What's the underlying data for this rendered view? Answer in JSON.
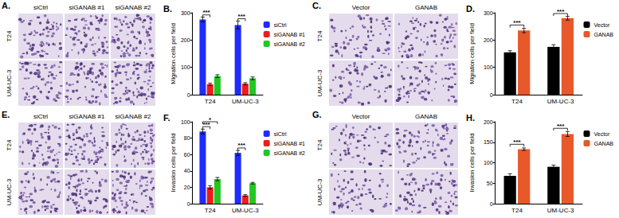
{
  "image_panels": [
    {
      "label": "A.",
      "columns": [
        "siCtrl",
        "siGANAB #1",
        "siGANAB #2"
      ],
      "rows": [
        "T24",
        "UM-UC-3"
      ]
    },
    {
      "label": "C.",
      "columns": [
        "Vector",
        "GANAB"
      ],
      "rows": [
        "T24",
        "UM-UC-3"
      ]
    },
    {
      "label": "E.",
      "columns": [
        "siCtrl",
        "siGANAB #1",
        "siGANAB #2"
      ],
      "rows": [
        "T24",
        "UM-UC-3"
      ]
    },
    {
      "label": "G.",
      "columns": [
        "Vector",
        "GANAB"
      ],
      "rows": [
        "T24",
        "UM-UC-3"
      ]
    }
  ],
  "chart_data": [
    {
      "type": "bar",
      "title": "B.",
      "ylabel": "Migration cells per field",
      "categories": [
        "T24",
        "UM-UC-3"
      ],
      "series": [
        {
          "name": "siCtrl",
          "color": "#1f2bff",
          "values": [
            275,
            255
          ],
          "errors": [
            9,
            14
          ]
        },
        {
          "name": "siGANAB #1",
          "color": "#ee1c1c",
          "values": [
            38,
            40
          ],
          "errors": [
            4,
            4
          ]
        },
        {
          "name": "siGANAB #2",
          "color": "#22c722",
          "values": [
            68,
            60
          ],
          "errors": [
            5,
            5
          ]
        }
      ],
      "ylim": [
        0,
        300
      ],
      "yticks": [
        0,
        100,
        200,
        300
      ],
      "grid": false,
      "legend": "right",
      "annotations": [
        {
          "text": "***",
          "category": "T24",
          "between": [
            "siCtrl",
            "siGANAB #1"
          ],
          "y": 292
        },
        {
          "text": "***",
          "category": "UM-UC-3",
          "between": [
            "siCtrl",
            "siGANAB #1"
          ],
          "y": 278
        }
      ]
    },
    {
      "type": "bar",
      "title": "D.",
      "ylabel": "Migration cells per field",
      "categories": [
        "T24",
        "UM-UC-3"
      ],
      "series": [
        {
          "name": "Vector",
          "color": "#000000",
          "values": [
            155,
            175
          ],
          "errors": [
            6,
            8
          ]
        },
        {
          "name": "GANAB",
          "color": "#e8582a",
          "values": [
            235,
            280
          ],
          "errors": [
            8,
            7
          ]
        }
      ],
      "ylim": [
        0,
        300
      ],
      "yticks": [
        0,
        100,
        200,
        300
      ],
      "grid": false,
      "legend": "right",
      "annotations": [
        {
          "text": "***",
          "category": "T24",
          "between": [
            "Vector",
            "GANAB"
          ],
          "y": 255
        },
        {
          "text": "***",
          "category": "UM-UC-3",
          "between": [
            "Vector",
            "GANAB"
          ],
          "y": 297
        }
      ]
    },
    {
      "type": "bar",
      "title": "F.",
      "ylabel": "Invasion cells per field",
      "categories": [
        "T24",
        "UM-UC-3"
      ],
      "series": [
        {
          "name": "siCtrl",
          "color": "#1f2bff",
          "values": [
            88,
            62
          ],
          "errors": [
            3,
            3
          ]
        },
        {
          "name": "siGANAB #1",
          "color": "#ee1c1c",
          "values": [
            20,
            10
          ],
          "errors": [
            2,
            1
          ]
        },
        {
          "name": "siGANAB #2",
          "color": "#22c722",
          "values": [
            30,
            25
          ],
          "errors": [
            2,
            1
          ]
        }
      ],
      "ylim": [
        0,
        100
      ],
      "yticks": [
        0,
        20,
        40,
        60,
        80,
        100
      ],
      "grid": false,
      "legend": "right",
      "annotations": [
        {
          "text": "***",
          "category": "T24",
          "between": [
            "siCtrl",
            "siGANAB #1"
          ],
          "y": 94
        },
        {
          "text": "*",
          "category": "T24",
          "between": [
            "siCtrl",
            "siGANAB #2"
          ],
          "y": 100
        },
        {
          "text": "***",
          "category": "UM-UC-3",
          "between": [
            "siCtrl",
            "siGANAB #1"
          ],
          "y": 68
        }
      ]
    },
    {
      "type": "bar",
      "title": "H.",
      "ylabel": "Invasion cells per field",
      "categories": [
        "T24",
        "UM-UC-3"
      ],
      "series": [
        {
          "name": "Vector",
          "color": "#000000",
          "values": [
            68,
            90
          ],
          "errors": [
            5,
            4
          ]
        },
        {
          "name": "GANAB",
          "color": "#e8582a",
          "values": [
            133,
            170
          ],
          "errors": [
            3,
            6
          ]
        }
      ],
      "ylim": [
        0,
        200
      ],
      "yticks": [
        0,
        50,
        100,
        150,
        200
      ],
      "grid": false,
      "legend": "right",
      "annotations": [
        {
          "text": "***",
          "category": "T24",
          "between": [
            "Vector",
            "GANAB"
          ],
          "y": 145
        },
        {
          "text": "***",
          "category": "UM-UC-3",
          "between": [
            "Vector",
            "GANAB"
          ],
          "y": 184
        }
      ]
    }
  ]
}
